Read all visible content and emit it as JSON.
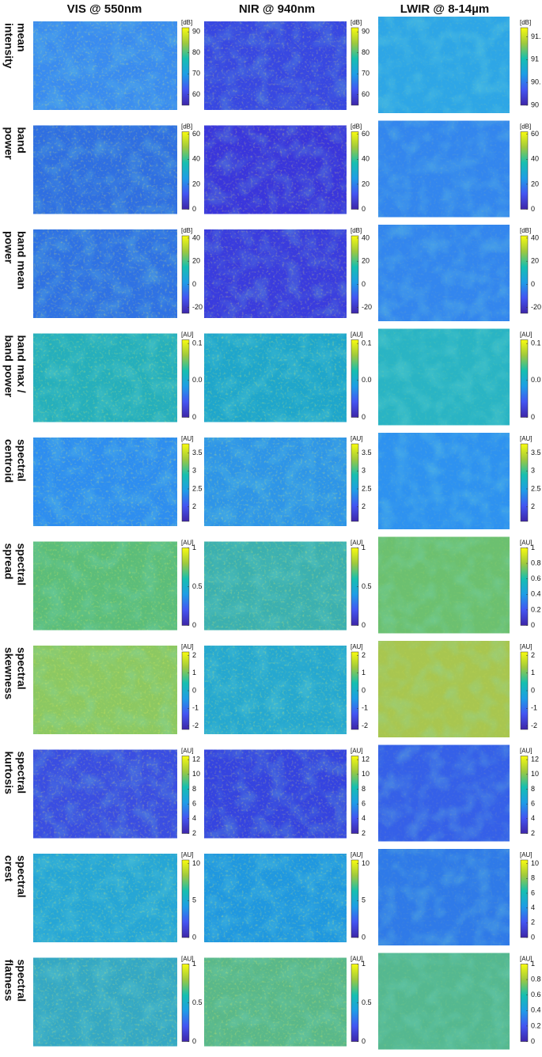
{
  "column_headers": [
    "VIS @ 550nm",
    "NIR @ 940nm",
    "LWIR @ 8-14µm"
  ],
  "rows": [
    {
      "label": [
        "mean",
        "intensity"
      ],
      "colorbars": [
        {
          "unit": "[dB]",
          "clim": [
            55,
            92
          ],
          "ticks": [
            90,
            80,
            70,
            60
          ]
        },
        {
          "unit": "[dB]",
          "clim": [
            55,
            92
          ],
          "ticks": [
            90,
            80,
            70,
            60
          ]
        },
        {
          "unit": "[dB]",
          "clim": [
            90,
            91.7
          ],
          "ticks": [
            {
              "value": 91.5,
              "label": "91."
            },
            91,
            {
              "value": 90.5,
              "label": "90."
            },
            90
          ]
        }
      ]
    },
    {
      "label": [
        "band",
        "power"
      ],
      "colorbars": [
        {
          "unit": "[dB]",
          "clim": [
            0,
            62
          ],
          "ticks": [
            60,
            40,
            20,
            0
          ]
        },
        {
          "unit": "[dB]",
          "clim": [
            0,
            62
          ],
          "ticks": [
            60,
            40,
            20,
            0
          ]
        },
        {
          "unit": "[dB]",
          "clim": [
            0,
            62
          ],
          "ticks": [
            60,
            40,
            20,
            0
          ]
        }
      ]
    },
    {
      "label": [
        "band mean",
        "power"
      ],
      "colorbars": [
        {
          "unit": "[dB]",
          "clim": [
            -25,
            42
          ],
          "ticks": [
            40,
            20,
            0,
            -20
          ]
        },
        {
          "unit": "[dB]",
          "clim": [
            -25,
            42
          ],
          "ticks": [
            40,
            20,
            0,
            -20
          ]
        },
        {
          "unit": "[dB]",
          "clim": [
            -25,
            42
          ],
          "ticks": [
            40,
            20,
            0,
            -20
          ]
        }
      ]
    },
    {
      "label": [
        "band max /",
        "band power"
      ],
      "colorbars": [
        {
          "unit": "[AU]",
          "clim": [
            0,
            0.105
          ],
          "ticks": [
            0.1,
            {
              "value": 0.05,
              "label": "0.0"
            },
            0
          ]
        },
        {
          "unit": "[AU]",
          "clim": [
            0,
            0.105
          ],
          "ticks": [
            0.1,
            {
              "value": 0.05,
              "label": "0.0"
            },
            0
          ]
        },
        {
          "unit": "[AU]",
          "clim": [
            0,
            0.105
          ],
          "ticks": [
            0.1,
            {
              "value": 0.05,
              "label": "0.0"
            },
            0
          ]
        }
      ]
    },
    {
      "label": [
        "spectral",
        "centroid"
      ],
      "colorbars": [
        {
          "unit": "[AU]",
          "clim": [
            1.6,
            3.75
          ],
          "ticks": [
            3.5,
            3,
            2.5,
            2
          ]
        },
        {
          "unit": "[AU]",
          "clim": [
            1.6,
            3.75
          ],
          "ticks": [
            3.5,
            3,
            2.5,
            2
          ]
        },
        {
          "unit": "[AU]",
          "clim": [
            1.6,
            3.75
          ],
          "ticks": [
            3.5,
            3,
            2.5,
            2
          ]
        }
      ]
    },
    {
      "label": [
        "spectral",
        "spread"
      ],
      "colorbars": [
        {
          "unit": "[AU]",
          "clim": [
            0,
            1
          ],
          "ticks": [
            1,
            0.5,
            0
          ]
        },
        {
          "unit": "[AU]",
          "clim": [
            0,
            1
          ],
          "ticks": [
            1,
            0.5,
            0
          ]
        },
        {
          "unit": "[AU]",
          "clim": [
            0,
            1
          ],
          "ticks": [
            1,
            0.8,
            0.6,
            0.4,
            0.2,
            0
          ]
        }
      ]
    },
    {
      "label": [
        "spectral",
        "skewness"
      ],
      "colorbars": [
        {
          "unit": "[AU]",
          "clim": [
            -2.2,
            2.2
          ],
          "ticks": [
            2,
            1,
            0,
            -1,
            -2
          ]
        },
        {
          "unit": "[AU]",
          "clim": [
            -2.2,
            2.2
          ],
          "ticks": [
            2,
            1,
            0,
            -1,
            -2
          ]
        },
        {
          "unit": "[AU]",
          "clim": [
            -2.2,
            2.2
          ],
          "ticks": [
            2,
            1,
            0,
            -1,
            -2
          ]
        }
      ]
    },
    {
      "label": [
        "spectral",
        "kurtosis"
      ],
      "colorbars": [
        {
          "unit": "[AU]",
          "clim": [
            2,
            12.5
          ],
          "ticks": [
            12,
            10,
            8,
            6,
            4,
            2
          ]
        },
        {
          "unit": "[AU]",
          "clim": [
            2,
            12.5
          ],
          "ticks": [
            12,
            10,
            8,
            6,
            4,
            2
          ]
        },
        {
          "unit": "[AU]",
          "clim": [
            2,
            12.5
          ],
          "ticks": [
            12,
            10,
            8,
            6,
            4,
            2
          ]
        }
      ]
    },
    {
      "label": [
        "spectral",
        "crest"
      ],
      "colorbars": [
        {
          "unit": "[AU]",
          "clim": [
            0,
            10.5
          ],
          "ticks": [
            10,
            5,
            0
          ]
        },
        {
          "unit": "[AU]",
          "clim": [
            0,
            10.5
          ],
          "ticks": [
            10,
            5,
            0
          ]
        },
        {
          "unit": "[AU]",
          "clim": [
            0,
            10.5
          ],
          "ticks": [
            10,
            8,
            6,
            4,
            2,
            0
          ]
        }
      ]
    },
    {
      "label": [
        "spectral",
        "flatness"
      ],
      "colorbars": [
        {
          "unit": "[AU]",
          "clim": [
            0,
            1
          ],
          "ticks": [
            1,
            0.5,
            0
          ]
        },
        {
          "unit": "[AU]",
          "clim": [
            0,
            1
          ],
          "ticks": [
            1,
            0.5,
            0
          ]
        },
        {
          "unit": "[AU]",
          "clim": [
            0,
            1
          ],
          "ticks": [
            1,
            0.8,
            0.6,
            0.4,
            0.2,
            0
          ]
        }
      ]
    }
  ]
}
